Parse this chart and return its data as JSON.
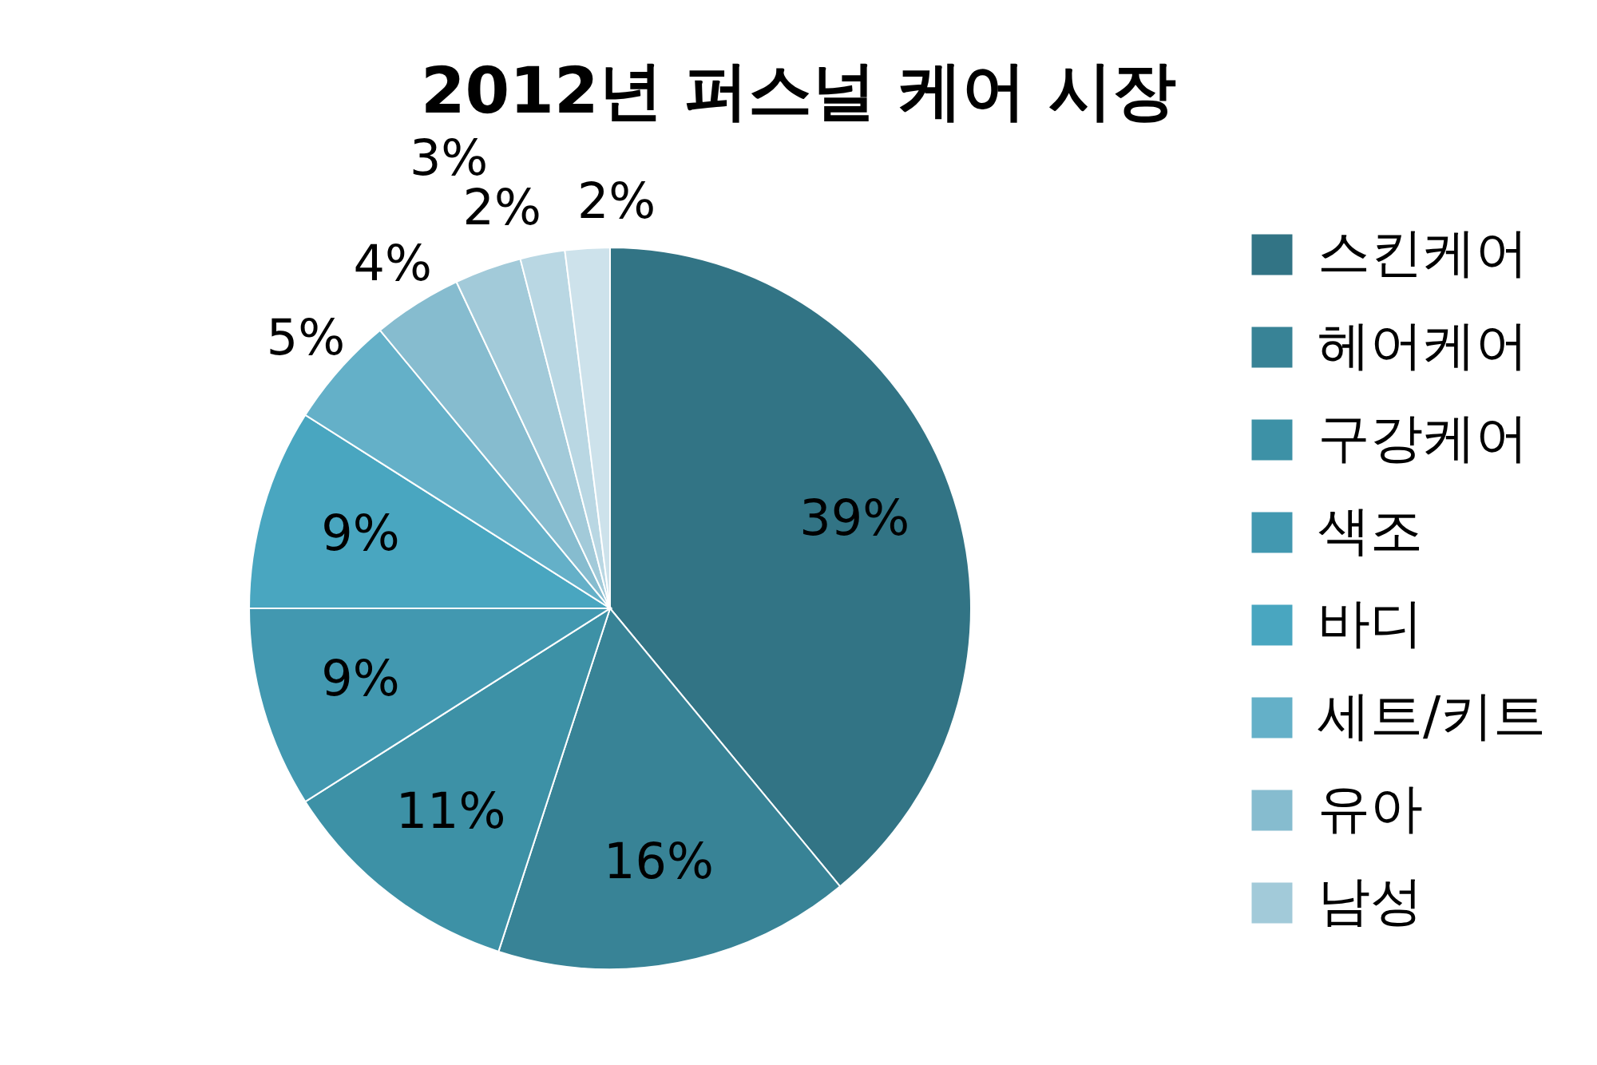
{
  "chart_data": {
    "type": "pie",
    "title": "2012년 퍼스널 케어 시장",
    "categories": [
      "스킨케어",
      "헤어케어",
      "구강케어",
      "색조",
      "바디",
      "세트/키트",
      "유아",
      "남성",
      null,
      null
    ],
    "values": [
      39,
      16,
      11,
      9,
      9,
      5,
      4,
      3,
      2,
      2
    ],
    "value_labels": [
      "39%",
      "16%",
      "11%",
      "9%",
      "9%",
      "5%",
      "4%",
      "3%",
      "2%",
      "2%"
    ],
    "colors": [
      "#327485",
      "#388396",
      "#3d91a6",
      "#4298b0",
      "#49a6c0",
      "#64b0c8",
      "#86bccf",
      "#a2cad9",
      "#b9d7e3",
      "#cde2eb"
    ],
    "legend": "right"
  }
}
